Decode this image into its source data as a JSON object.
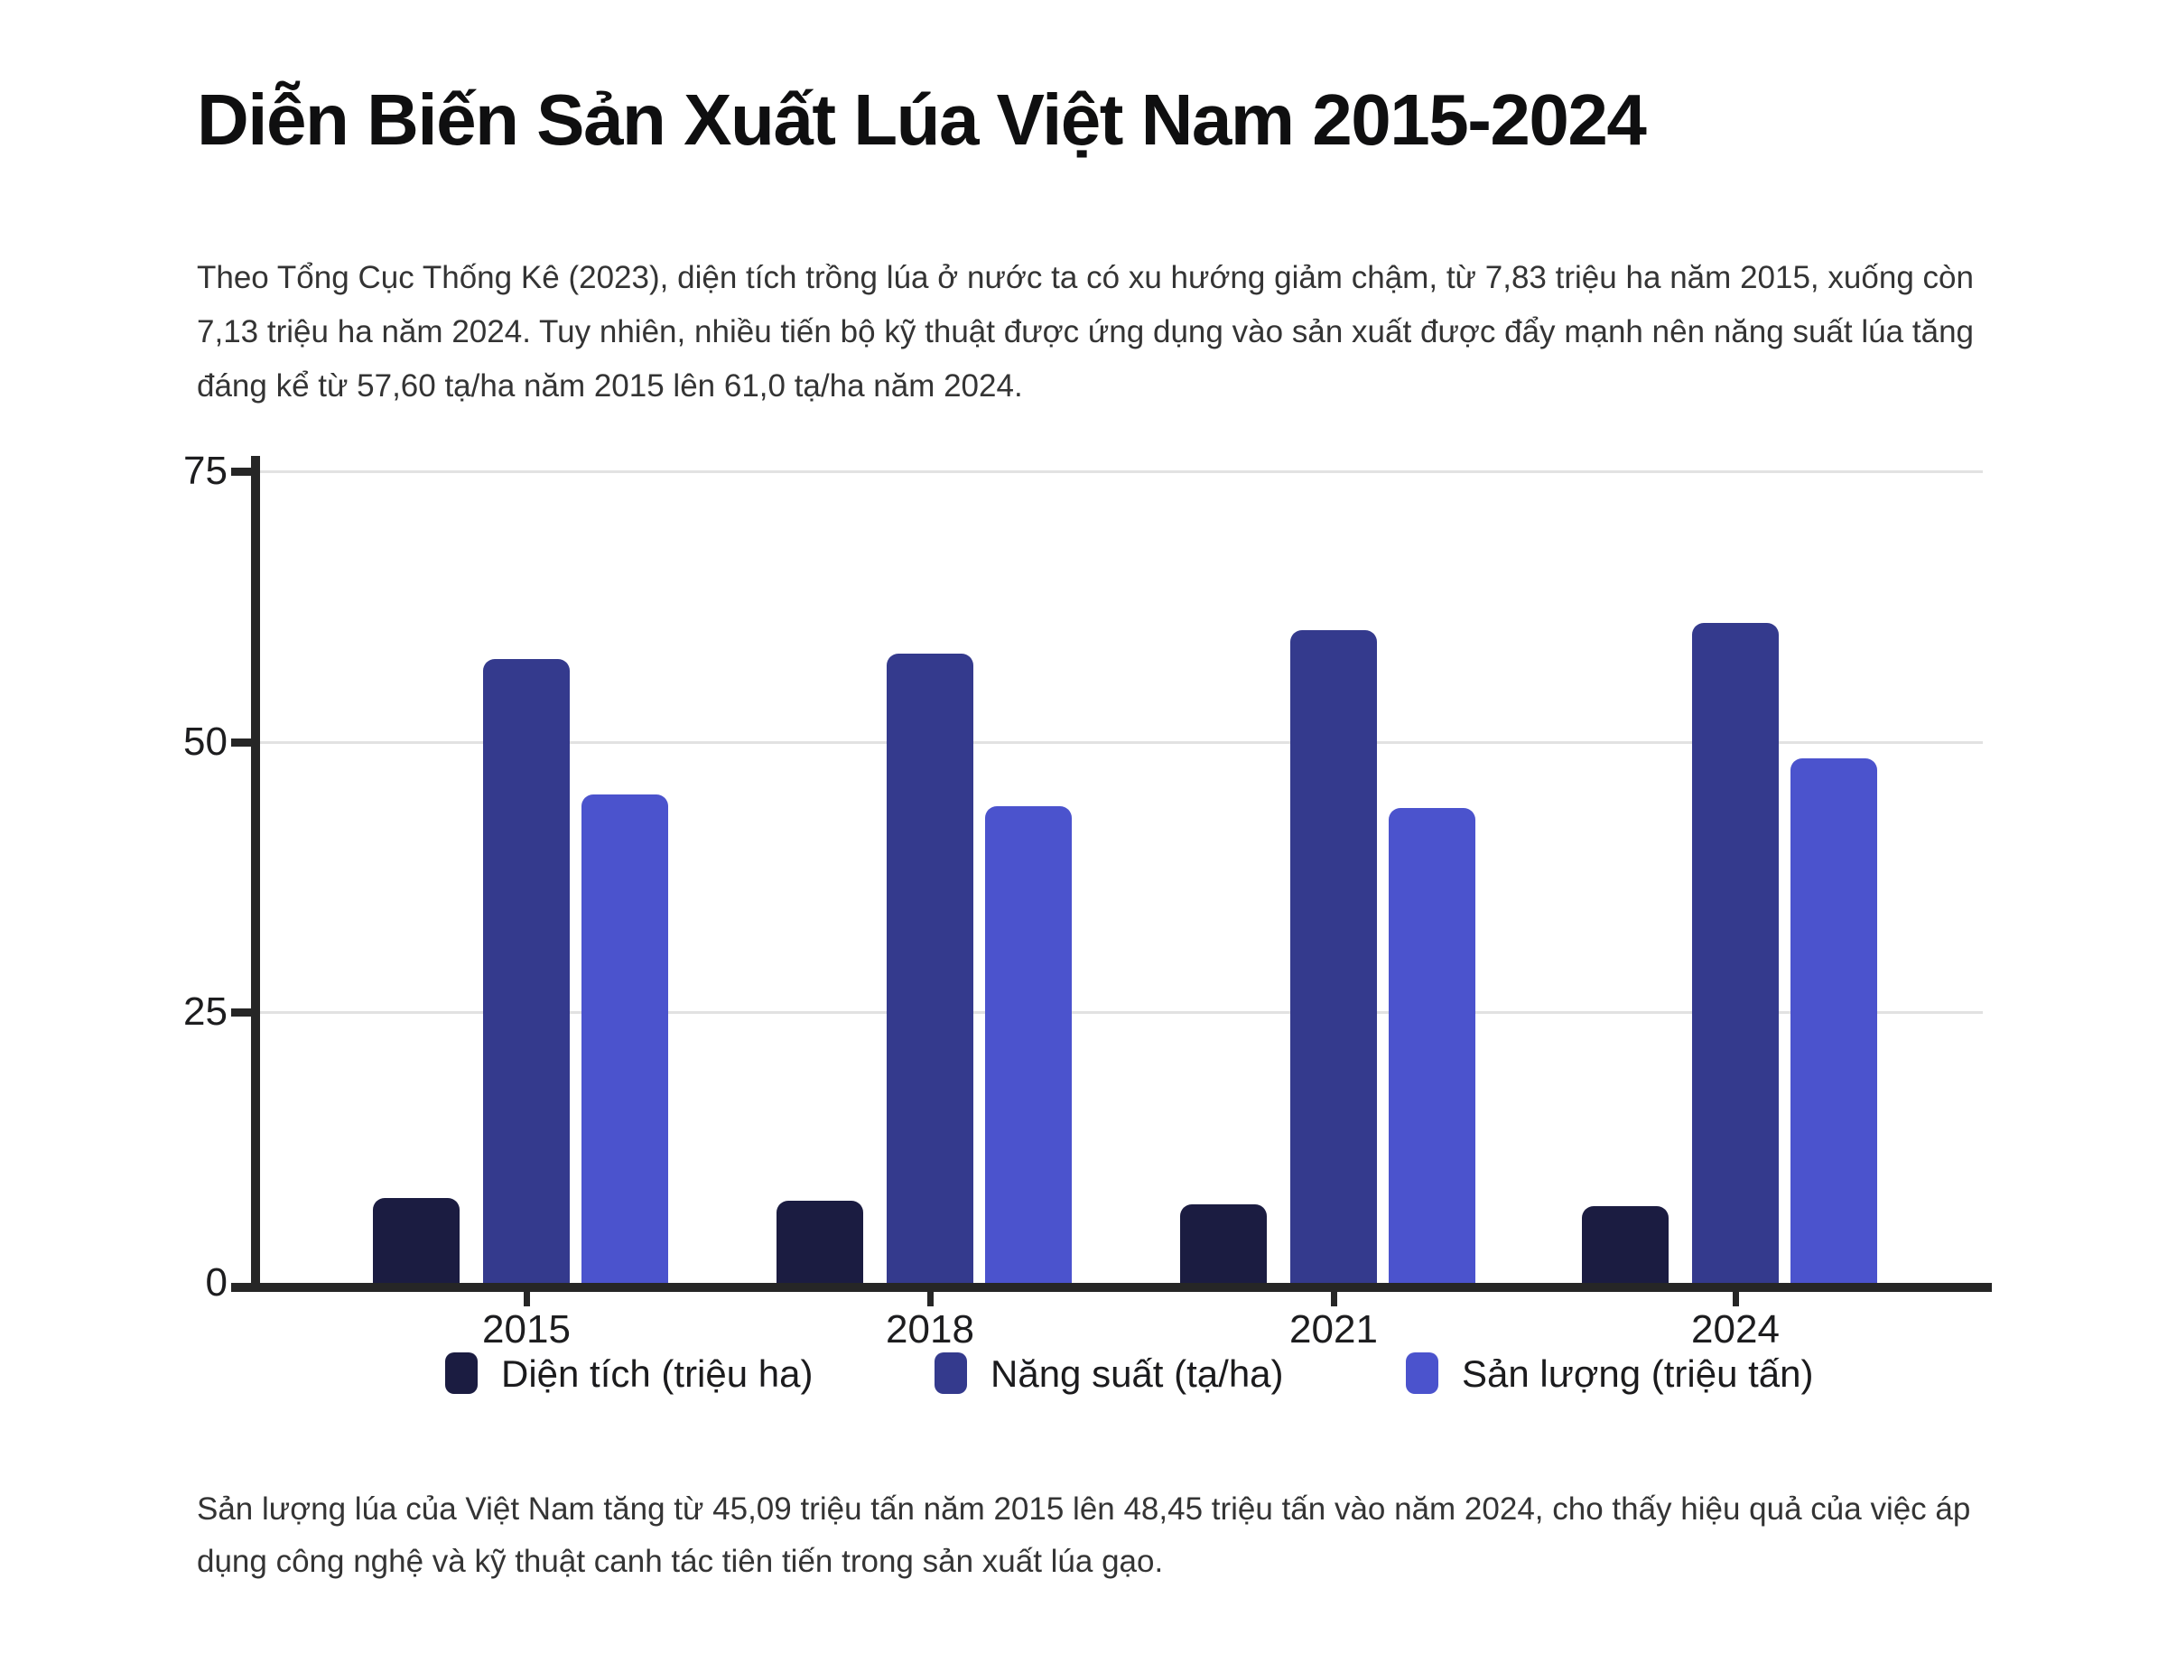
{
  "title": "Diễn Biến Sản Xuất Lúa Việt Nam 2015-2024",
  "intro_paragraph": "Theo Tổng Cục Thống Kê (2023), diện tích trồng lúa ở nước ta có xu hướng giảm chậm, từ 7,83 triệu ha năm 2015, xuống còn 7,13 triệu ha năm 2024. Tuy nhiên, nhiều tiến bộ kỹ thuật được ứng dụng vào sản xuất được đẩy mạnh nên năng suất lúa tăng đáng kể từ 57,60 tạ/ha năm 2015 lên 61,0 tạ/ha năm 2024.",
  "footer_paragraph": "Sản lượng lúa của Việt Nam tăng từ 45,09 triệu tấn năm 2015 lên 48,45 triệu tấn vào năm 2024, cho thấy hiệu quả của việc áp dụng công nghệ và kỹ thuật canh tác tiên tiến trong sản xuất lúa gạo.",
  "chart_data": {
    "type": "bar",
    "categories": [
      "2015",
      "2018",
      "2021",
      "2024"
    ],
    "series": [
      {
        "name": "Diện tích (triệu ha)",
        "color": "#1b1c41",
        "values": [
          7.83,
          7.57,
          7.24,
          7.13
        ]
      },
      {
        "name": "Năng suất (tạ/ha)",
        "color": "#343a8d",
        "values": [
          57.6,
          58.1,
          60.3,
          61.0
        ]
      },
      {
        "name": "Sản lượng (triệu tấn)",
        "color": "#4b53cd",
        "values": [
          45.09,
          44.0,
          43.9,
          48.45
        ]
      }
    ],
    "title": "",
    "xlabel": "",
    "ylabel": "",
    "ylim": [
      0,
      75
    ],
    "yticks": [
      0,
      25,
      50,
      75
    ],
    "grid": true,
    "legend_position": "bottom",
    "axis_color": "#262626",
    "grid_color": "#e2e2e2",
    "tick_label_color": "#1d1d1f"
  }
}
